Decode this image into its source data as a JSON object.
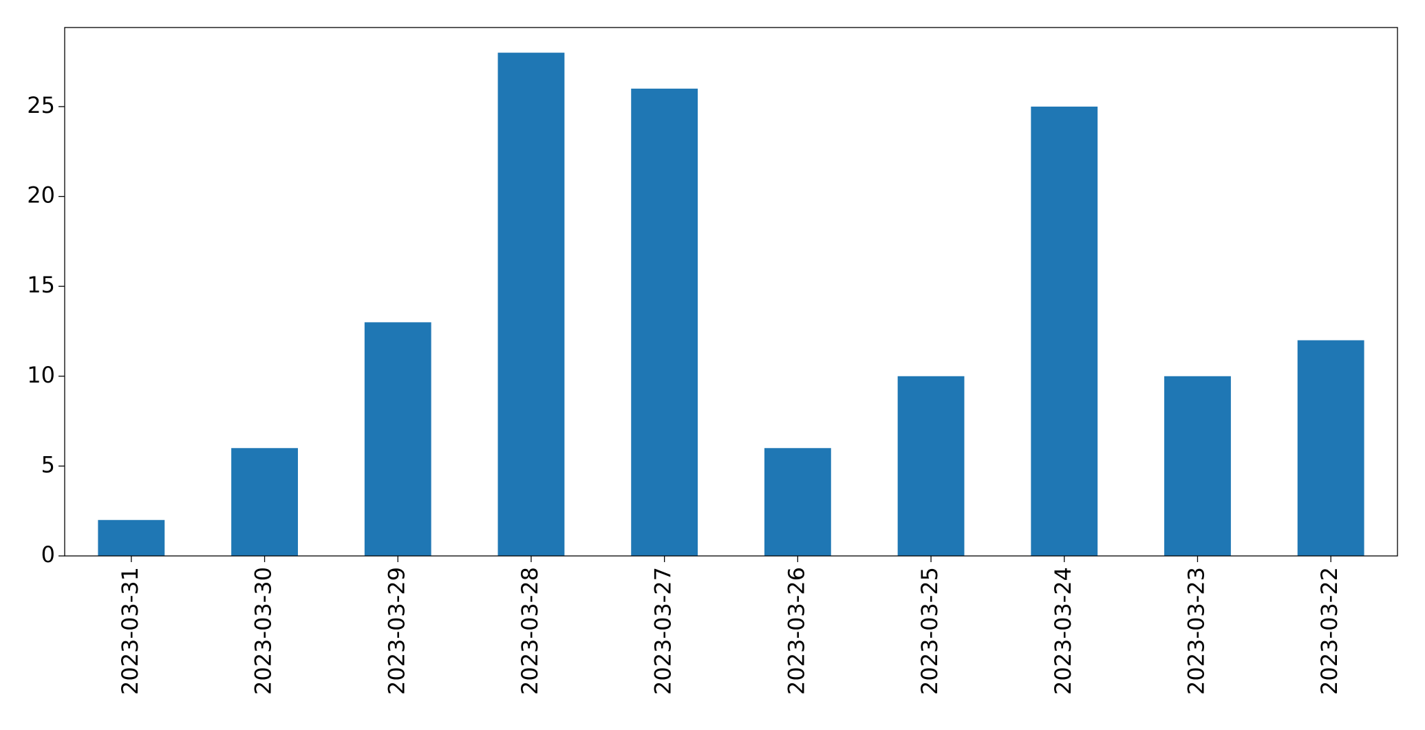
{
  "chart_data": {
    "type": "bar",
    "categories": [
      "2023-03-31",
      "2023-03-30",
      "2023-03-29",
      "2023-03-28",
      "2023-03-27",
      "2023-03-26",
      "2023-03-25",
      "2023-03-24",
      "2023-03-23",
      "2023-03-22"
    ],
    "values": [
      2,
      6,
      13,
      28,
      26,
      6,
      10,
      25,
      10,
      12
    ],
    "color": "#1f77b4",
    "ylim": [
      0,
      29.4
    ],
    "yticks": [
      0,
      5,
      10,
      15,
      20,
      25
    ],
    "grid": false
  }
}
